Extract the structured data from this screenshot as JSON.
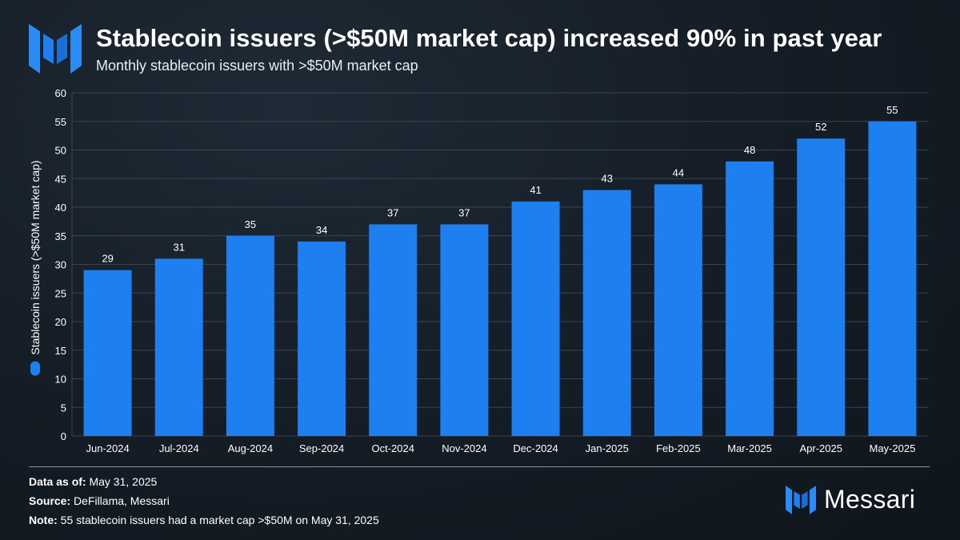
{
  "header": {
    "logo_name": "messari-logo",
    "title": "Stablecoin issuers (>$50M market cap) increased 90% in past year",
    "subtitle": "Monthly stablecoin issuers with >$50M market cap"
  },
  "colors": {
    "bar": "#1e7ff0",
    "grid": "#3a444f",
    "axis_text": "#ffffff"
  },
  "chart_data": {
    "type": "bar",
    "title": "Stablecoin issuers (>$50M market cap) increased 90% in past year",
    "subtitle": "Monthly stablecoin issuers with >$50M market cap",
    "xlabel": "",
    "ylabel": "Stablecoin issuers (>$50M market cap)",
    "categories": [
      "Jun-2024",
      "Jul-2024",
      "Aug-2024",
      "Sep-2024",
      "Oct-2024",
      "Nov-2024",
      "Dec-2024",
      "Jan-2025",
      "Feb-2025",
      "Mar-2025",
      "Apr-2025",
      "May-2025"
    ],
    "values": [
      29,
      31,
      35,
      34,
      37,
      37,
      41,
      43,
      44,
      48,
      52,
      55
    ],
    "ylim": [
      0,
      60
    ],
    "yticks": [
      0,
      5,
      10,
      15,
      20,
      25,
      30,
      35,
      40,
      45,
      50,
      55,
      60
    ],
    "grid": true,
    "data_labels": true
  },
  "footer": {
    "data_as_of_label": "Data as of:",
    "data_as_of_value": "May 31, 2025",
    "source_label": "Source:",
    "source_value": "DeFillama, Messari",
    "note_label": "Note:",
    "note_value": "55 stablecoin issuers had a market cap >$50M on May 31, 2025"
  },
  "brand": {
    "name": "Messari"
  }
}
